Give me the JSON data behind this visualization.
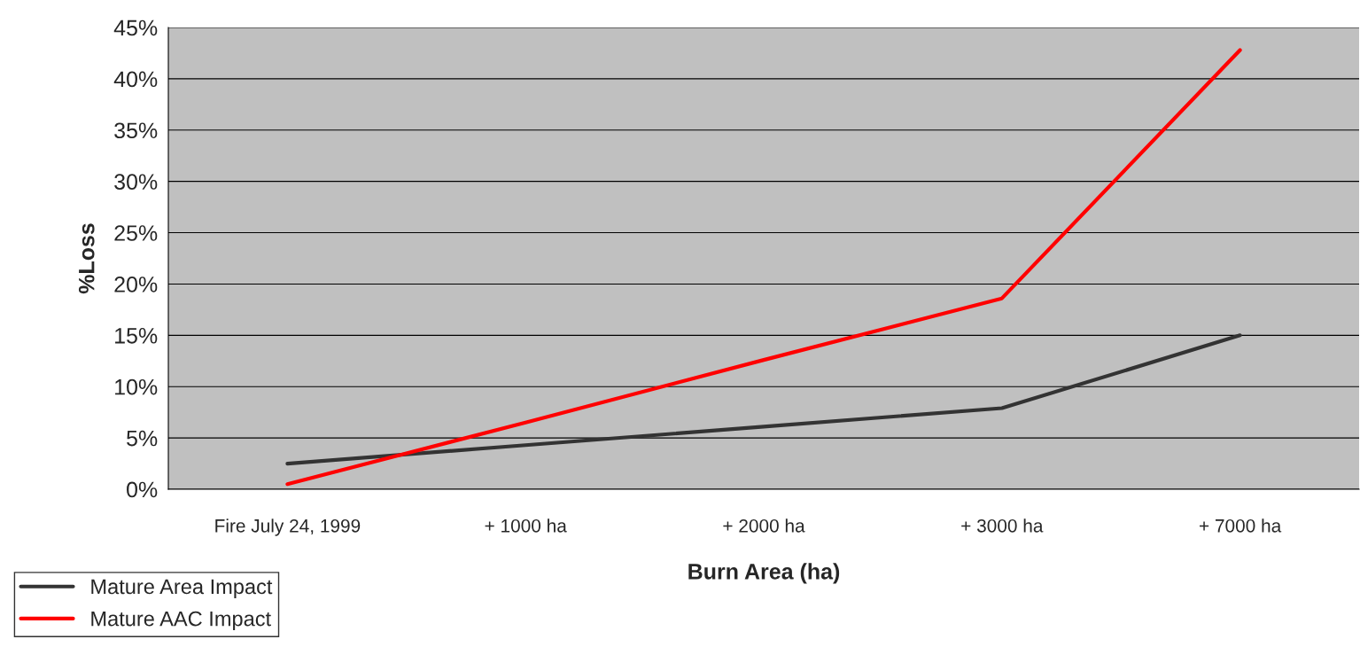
{
  "chart_data": {
    "type": "line",
    "xlabel": "Burn Area (ha)",
    "ylabel": "%Loss",
    "categories": [
      "Fire July 24, 1999",
      "+ 1000 ha",
      "+ 2000 ha",
      "+ 3000 ha",
      "+ 7000 ha"
    ],
    "series": [
      {
        "name": "Mature Area Impact",
        "color": "#333333",
        "values": [
          2.5,
          4.3,
          6.1,
          7.9,
          15.0
        ]
      },
      {
        "name": "Mature AAC Impact",
        "color": "#ff0000",
        "values": [
          0.5,
          6.5,
          12.6,
          18.6,
          42.8
        ]
      }
    ],
    "ylim": [
      0,
      45
    ],
    "yticks": [
      {
        "value": 0,
        "label": "0%"
      },
      {
        "value": 5,
        "label": "5%"
      },
      {
        "value": 10,
        "label": "10%"
      },
      {
        "value": 15,
        "label": "15%"
      },
      {
        "value": 20,
        "label": "20%"
      },
      {
        "value": 25,
        "label": "25%"
      },
      {
        "value": 30,
        "label": "30%"
      },
      {
        "value": 35,
        "label": "35%"
      },
      {
        "value": 40,
        "label": "40%"
      },
      {
        "value": 45,
        "label": "45%"
      }
    ],
    "grid": "y",
    "legend": "bottom left",
    "marker": "none",
    "line_style": "solid"
  }
}
